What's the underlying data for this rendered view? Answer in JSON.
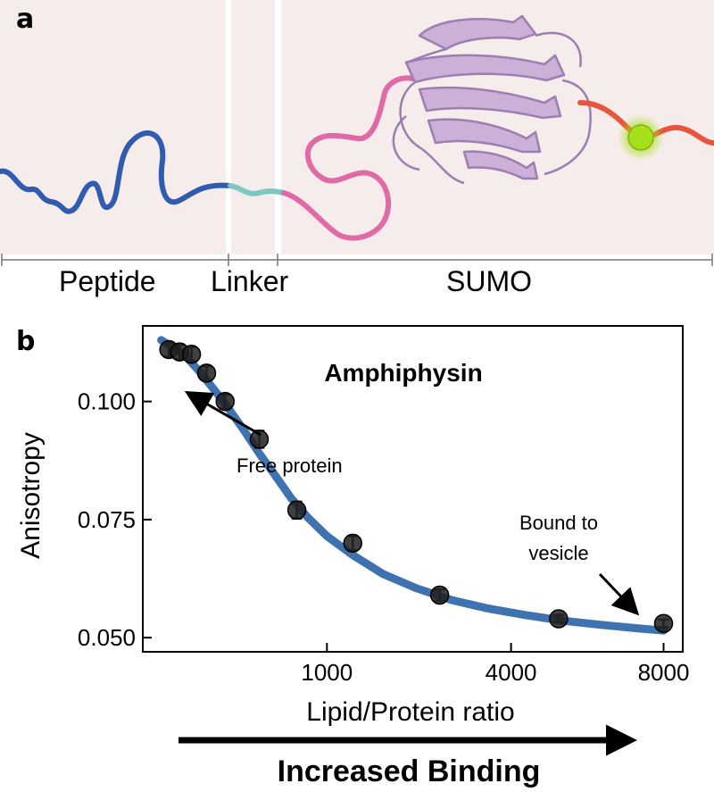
{
  "panel_a": {
    "letter": "a",
    "segments": [
      {
        "label": "Peptide"
      },
      {
        "label": "Linker"
      },
      {
        "label": "SUMO"
      }
    ],
    "colors": {
      "background": "#f6ecec",
      "peptide": "#2f5bb0",
      "linker": "#7ec8c4",
      "sumo_loop": "#e06aa6",
      "sumo_fold": "#cbb0d8",
      "tail": "#e8553f",
      "fluorophore": "#a6e01a"
    }
  },
  "panel_b": {
    "letter": "b",
    "arrow_label": "Increased Binding"
  },
  "chart_data": {
    "type": "scatter",
    "title": "Amphiphysin",
    "xlabel": "Lipid/Protein ratio",
    "ylabel": "Anisotropy",
    "x_scale": "sqrt",
    "xlim": [
      0,
      8600
    ],
    "ylim": [
      0.047,
      0.116
    ],
    "x_ticks": [
      1000,
      4000,
      8000
    ],
    "x_tick_labels": [
      "1000",
      "4000",
      "8000"
    ],
    "y_ticks": [
      0.05,
      0.075,
      0.1
    ],
    "y_tick_labels": [
      "0.050",
      "0.075",
      "0.100"
    ],
    "grid": false,
    "points": [
      {
        "x": 20,
        "y": 0.111,
        "err": 0.0015
      },
      {
        "x": 40,
        "y": 0.1105,
        "err": 0.0015
      },
      {
        "x": 70,
        "y": 0.11,
        "err": 0.0015
      },
      {
        "x": 120,
        "y": 0.106,
        "err": 0.0015
      },
      {
        "x": 200,
        "y": 0.1,
        "err": 0.0015
      },
      {
        "x": 400,
        "y": 0.092,
        "err": 0.0018
      },
      {
        "x": 700,
        "y": 0.077,
        "err": 0.0018
      },
      {
        "x": 1300,
        "y": 0.07,
        "err": 0.0015
      },
      {
        "x": 2600,
        "y": 0.059,
        "err": 0.0012
      },
      {
        "x": 5100,
        "y": 0.054,
        "err": 0.0008
      },
      {
        "x": 8000,
        "y": 0.053,
        "err": 0.0008
      }
    ],
    "fit": {
      "x": [
        10,
        50,
        100,
        150,
        200,
        300,
        400,
        500,
        650,
        800,
        1000,
        1300,
        1700,
        2200,
        2800,
        3500,
        4300,
        5200,
        6200,
        7200,
        8000
      ],
      "y": [
        0.113,
        0.11,
        0.106,
        0.1025,
        0.0995,
        0.094,
        0.089,
        0.085,
        0.0795,
        0.0755,
        0.0715,
        0.0675,
        0.0635,
        0.0605,
        0.058,
        0.0562,
        0.0548,
        0.0536,
        0.0527,
        0.052,
        0.0515
      ]
    },
    "fit_color": "#3f73b0",
    "marker_color": "#1e1e1e",
    "annotations": [
      {
        "text": "Free protein"
      },
      {
        "text": "Bound to vesicle"
      }
    ]
  }
}
